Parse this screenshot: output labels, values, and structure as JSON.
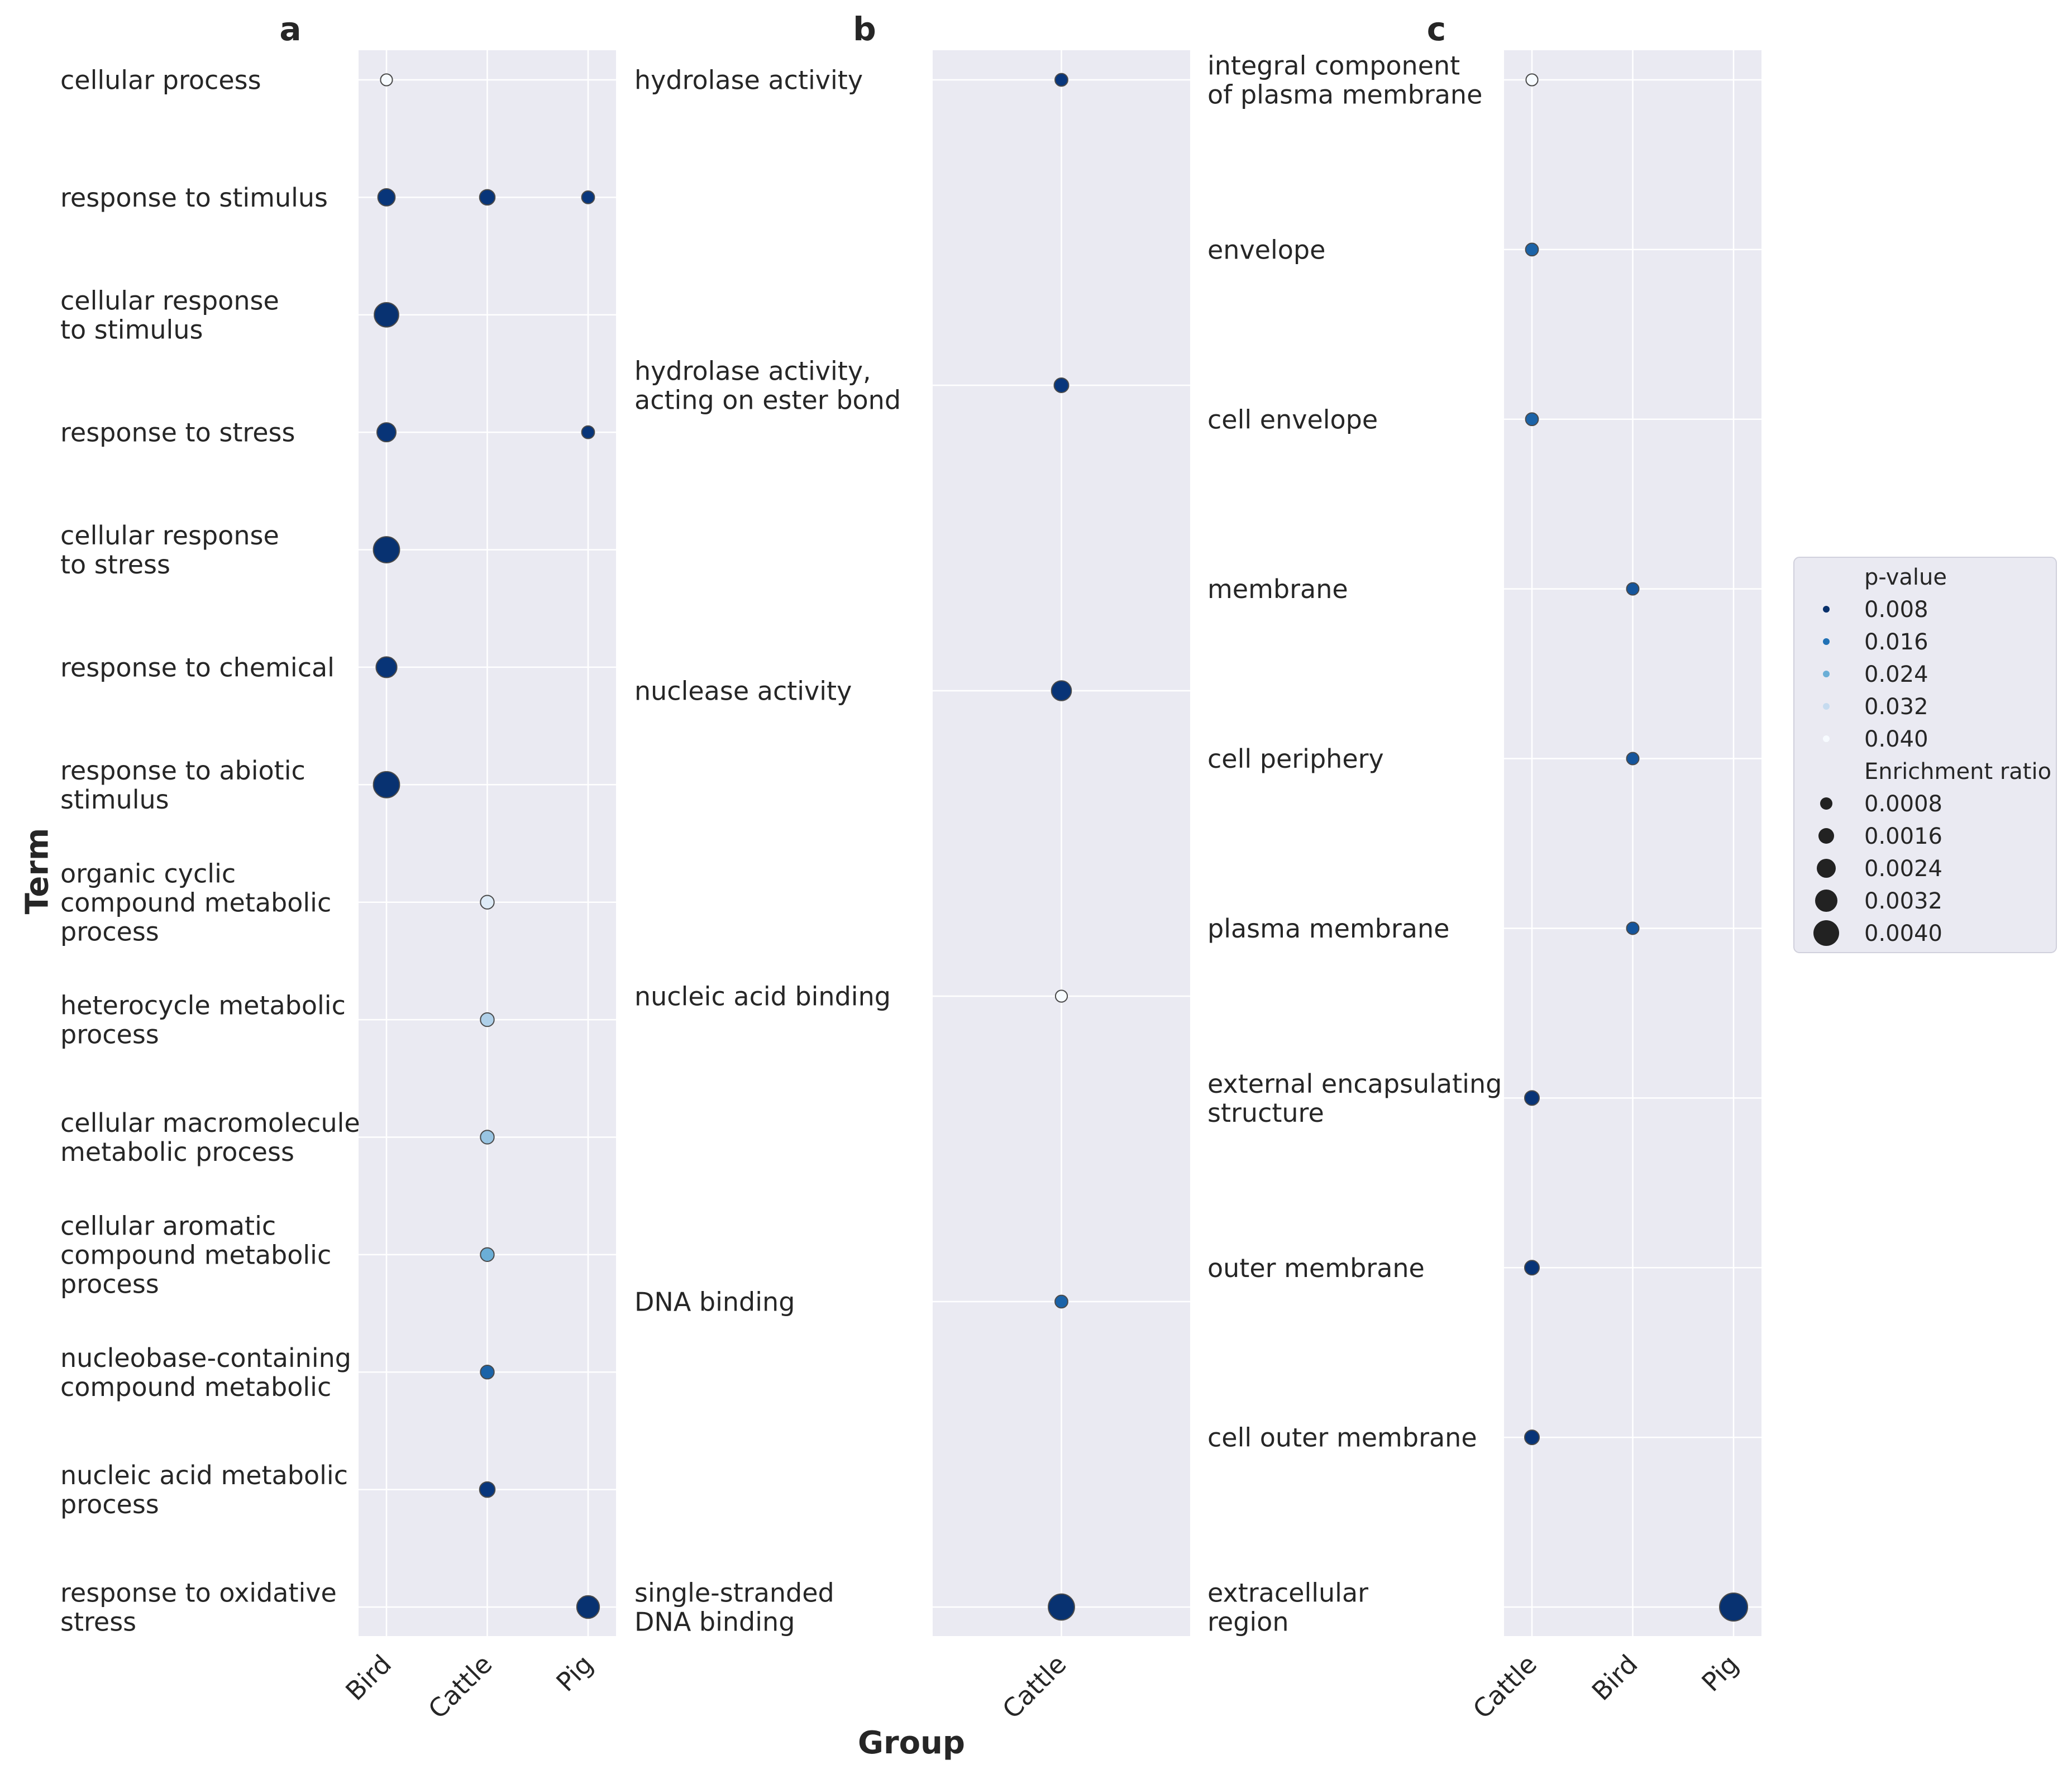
{
  "figure": {
    "x_axis_title": "Group",
    "y_axis_title": "Term"
  },
  "legend": {
    "pvalue_title": "p-value",
    "pvalue_items": [
      "0.008",
      "0.016",
      "0.024",
      "0.032",
      "0.040"
    ],
    "pvalue_colors": [
      "#08306b",
      "#2171b5",
      "#6baed6",
      "#c6dbef",
      "#f7fbff"
    ],
    "size_title": "Enrichment ratio",
    "size_items": [
      "0.0008",
      "0.0016",
      "0.0024",
      "0.0032",
      "0.0040"
    ],
    "size_dot_color": "#222222",
    "placement": "right-center"
  },
  "colors": {
    "panel_bg": "#eaeaf2",
    "grid": "#ffffff",
    "text": "#262626"
  },
  "chart_data": [
    {
      "panel": "a",
      "type": "scatter",
      "categories": [
        "Bird",
        "Cattle",
        "Pig"
      ],
      "terms": [
        "cellular process",
        "response to stimulus",
        "cellular response\nto stimulus",
        "response to stress",
        "cellular response\nto stress",
        "response to chemical",
        "response to abiotic\nstimulus",
        "organic cyclic\ncompound metabolic\nprocess",
        "heterocycle metabolic\nprocess",
        "cellular macromolecule\nmetabolic process",
        "cellular aromatic\ncompound metabolic\nprocess",
        "nucleobase-containing\ncompound metabolic",
        "nucleic acid metabolic\nprocess",
        "response to oxidative\nstress"
      ],
      "points": [
        {
          "term": 0,
          "group": "Bird",
          "pvalue": 0.04,
          "ratio": 0.0004
        },
        {
          "term": 1,
          "group": "Bird",
          "pvalue": 0.005,
          "ratio": 0.0016
        },
        {
          "term": 1,
          "group": "Cattle",
          "pvalue": 0.005,
          "ratio": 0.0012
        },
        {
          "term": 1,
          "group": "Pig",
          "pvalue": 0.006,
          "ratio": 0.0006
        },
        {
          "term": 2,
          "group": "Bird",
          "pvalue": 0.002,
          "ratio": 0.0032
        },
        {
          "term": 3,
          "group": "Bird",
          "pvalue": 0.004,
          "ratio": 0.002
        },
        {
          "term": 3,
          "group": "Pig",
          "pvalue": 0.005,
          "ratio": 0.0006
        },
        {
          "term": 4,
          "group": "Bird",
          "pvalue": 0.002,
          "ratio": 0.0036
        },
        {
          "term": 5,
          "group": "Bird",
          "pvalue": 0.004,
          "ratio": 0.0024
        },
        {
          "term": 6,
          "group": "Bird",
          "pvalue": 0.002,
          "ratio": 0.0036
        },
        {
          "term": 7,
          "group": "Cattle",
          "pvalue": 0.036,
          "ratio": 0.0008
        },
        {
          "term": 8,
          "group": "Cattle",
          "pvalue": 0.03,
          "ratio": 0.0008
        },
        {
          "term": 9,
          "group": "Cattle",
          "pvalue": 0.028,
          "ratio": 0.0008
        },
        {
          "term": 10,
          "group": "Cattle",
          "pvalue": 0.024,
          "ratio": 0.0008
        },
        {
          "term": 11,
          "group": "Cattle",
          "pvalue": 0.014,
          "ratio": 0.0008
        },
        {
          "term": 12,
          "group": "Cattle",
          "pvalue": 0.006,
          "ratio": 0.0012
        },
        {
          "term": 13,
          "group": "Pig",
          "pvalue": 0.002,
          "ratio": 0.0028
        }
      ]
    },
    {
      "panel": "b",
      "type": "scatter",
      "categories": [
        "Cattle"
      ],
      "terms": [
        "hydrolase activity",
        "hydrolase activity,\nacting on ester bond",
        "nuclease activity",
        "nucleic acid binding",
        "DNA binding",
        "single-stranded\nDNA binding"
      ],
      "points": [
        {
          "term": 0,
          "group": "Cattle",
          "pvalue": 0.006,
          "ratio": 0.0006
        },
        {
          "term": 1,
          "group": "Cattle",
          "pvalue": 0.006,
          "ratio": 0.001
        },
        {
          "term": 2,
          "group": "Cattle",
          "pvalue": 0.004,
          "ratio": 0.0022
        },
        {
          "term": 3,
          "group": "Cattle",
          "pvalue": 0.04,
          "ratio": 0.0004
        },
        {
          "term": 4,
          "group": "Cattle",
          "pvalue": 0.014,
          "ratio": 0.0006
        },
        {
          "term": 5,
          "group": "Cattle",
          "pvalue": 0.002,
          "ratio": 0.0036
        }
      ]
    },
    {
      "panel": "c",
      "type": "scatter",
      "categories": [
        "Cattle",
        "Bird",
        "Pig"
      ],
      "terms": [
        "integral component\nof plasma membrane",
        "envelope",
        "cell envelope",
        "membrane",
        "cell periphery",
        "plasma membrane",
        "external encapsulating\nstructure",
        "outer membrane",
        "cell outer membrane",
        "extracellular\nregion"
      ],
      "points": [
        {
          "term": 0,
          "group": "Cattle",
          "pvalue": 0.04,
          "ratio": 0.0004
        },
        {
          "term": 1,
          "group": "Cattle",
          "pvalue": 0.014,
          "ratio": 0.0006
        },
        {
          "term": 2,
          "group": "Cattle",
          "pvalue": 0.014,
          "ratio": 0.0006
        },
        {
          "term": 3,
          "group": "Bird",
          "pvalue": 0.012,
          "ratio": 0.0005
        },
        {
          "term": 4,
          "group": "Bird",
          "pvalue": 0.012,
          "ratio": 0.0005
        },
        {
          "term": 5,
          "group": "Bird",
          "pvalue": 0.012,
          "ratio": 0.0005
        },
        {
          "term": 6,
          "group": "Cattle",
          "pvalue": 0.004,
          "ratio": 0.001
        },
        {
          "term": 7,
          "group": "Cattle",
          "pvalue": 0.004,
          "ratio": 0.001
        },
        {
          "term": 8,
          "group": "Cattle",
          "pvalue": 0.004,
          "ratio": 0.001
        },
        {
          "term": 9,
          "group": "Pig",
          "pvalue": 0.002,
          "ratio": 0.004
        }
      ]
    }
  ]
}
